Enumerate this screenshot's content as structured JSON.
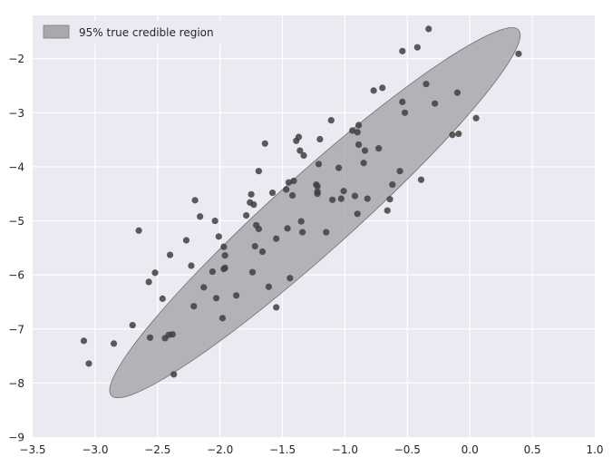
{
  "chart_data": {
    "type": "scatter",
    "title": "",
    "xlabel": "",
    "ylabel": "",
    "xlim": [
      -3.5,
      1.0
    ],
    "ylim": [
      -9,
      -1.2
    ],
    "xticks": [
      -3.5,
      -3.0,
      -2.5,
      -2.0,
      -1.5,
      -1.0,
      -0.5,
      0.0,
      0.5,
      1.0
    ],
    "xtick_labels": [
      "−3.5",
      "−3.0",
      "−2.5",
      "−2.0",
      "−1.5",
      "−1.0",
      "−0.5",
      "0.0",
      "0.5",
      "1.0"
    ],
    "yticks": [
      -9,
      -8,
      -7,
      -6,
      -5,
      -4,
      -3,
      -2
    ],
    "ytick_labels": [
      "−9",
      "−8",
      "−7",
      "−6",
      "−5",
      "−4",
      "−3",
      "−2"
    ],
    "grid": true,
    "legend": {
      "placement": "top-left",
      "entries": [
        {
          "label": "95% true credible region",
          "color": "#a9a9ad"
        }
      ]
    },
    "region": {
      "center": [
        -1.24,
        -4.85
      ],
      "semi_axes": [
        2.15,
        0.42
      ],
      "points_on_boundary": [
        [
          0.39,
          -1.47
        ],
        [
          -2.87,
          -8.23
        ],
        [
          -3.18,
          -7.25
        ],
        [
          0.07,
          -2.45
        ]
      ]
    },
    "points_color": "#404040",
    "points": [
      [
        -3.09,
        -7.22
      ],
      [
        -3.05,
        -7.64
      ],
      [
        -2.85,
        -7.27
      ],
      [
        -2.7,
        -6.93
      ],
      [
        -2.65,
        -5.18
      ],
      [
        -2.57,
        -6.13
      ],
      [
        -2.56,
        -7.16
      ],
      [
        -2.52,
        -5.96
      ],
      [
        -2.46,
        -6.44
      ],
      [
        -2.44,
        -7.17
      ],
      [
        -2.41,
        -7.11
      ],
      [
        -2.4,
        -5.63
      ],
      [
        -2.38,
        -7.1
      ],
      [
        -2.37,
        -7.84
      ],
      [
        -2.27,
        -5.36
      ],
      [
        -2.23,
        -5.83
      ],
      [
        -2.21,
        -6.58
      ],
      [
        -2.2,
        -4.62
      ],
      [
        -2.16,
        -4.92
      ],
      [
        -2.13,
        -6.23
      ],
      [
        -2.06,
        -5.94
      ],
      [
        -2.04,
        -5.0
      ],
      [
        -2.03,
        -6.43
      ],
      [
        -2.01,
        -5.29
      ],
      [
        -1.98,
        -6.8
      ],
      [
        -1.97,
        -5.48
      ],
      [
        -1.97,
        -5.89
      ],
      [
        -1.96,
        -5.64
      ],
      [
        -1.96,
        -5.87
      ],
      [
        -1.87,
        -6.38
      ],
      [
        -1.79,
        -4.9
      ],
      [
        -1.76,
        -4.66
      ],
      [
        -1.75,
        -4.51
      ],
      [
        -1.74,
        -5.95
      ],
      [
        -1.73,
        -4.7
      ],
      [
        -1.72,
        -5.47
      ],
      [
        -1.71,
        -5.08
      ],
      [
        -1.69,
        -5.15
      ],
      [
        -1.69,
        -4.08
      ],
      [
        -1.66,
        -5.57
      ],
      [
        -1.64,
        -3.57
      ],
      [
        -1.61,
        -6.22
      ],
      [
        -1.58,
        -4.48
      ],
      [
        -1.55,
        -6.6
      ],
      [
        -1.55,
        -5.33
      ],
      [
        -1.47,
        -4.42
      ],
      [
        -1.46,
        -5.14
      ],
      [
        -1.45,
        -4.29
      ],
      [
        -1.44,
        -6.06
      ],
      [
        -1.42,
        -4.53
      ],
      [
        -1.41,
        -4.26
      ],
      [
        -1.39,
        -3.52
      ],
      [
        -1.37,
        -3.45
      ],
      [
        -1.36,
        -3.7
      ],
      [
        -1.35,
        -5.01
      ],
      [
        -1.34,
        -5.21
      ],
      [
        -1.33,
        -3.79
      ],
      [
        -1.23,
        -4.33
      ],
      [
        -1.22,
        -4.36
      ],
      [
        -1.22,
        -4.46
      ],
      [
        -1.22,
        -4.5
      ],
      [
        -1.21,
        -3.95
      ],
      [
        -1.2,
        -3.49
      ],
      [
        -1.15,
        -5.21
      ],
      [
        -1.11,
        -3.14
      ],
      [
        -1.1,
        -4.61
      ],
      [
        -1.05,
        -4.02
      ],
      [
        -1.03,
        -4.59
      ],
      [
        -1.01,
        -4.45
      ],
      [
        -0.94,
        -3.33
      ],
      [
        -0.92,
        -4.54
      ],
      [
        -0.9,
        -3.36
      ],
      [
        -0.9,
        -4.87
      ],
      [
        -0.89,
        -3.23
      ],
      [
        -0.89,
        -3.59
      ],
      [
        -0.85,
        -3.93
      ],
      [
        -0.84,
        -3.7
      ],
      [
        -0.82,
        -4.59
      ],
      [
        -0.77,
        -2.59
      ],
      [
        -0.73,
        -3.66
      ],
      [
        -0.7,
        -2.54
      ],
      [
        -0.66,
        -4.81
      ],
      [
        -0.64,
        -4.6
      ],
      [
        -0.62,
        -4.33
      ],
      [
        -0.56,
        -4.08
      ],
      [
        -0.54,
        -1.86
      ],
      [
        -0.54,
        -2.8
      ],
      [
        -0.52,
        -3.0
      ],
      [
        -0.42,
        -1.79
      ],
      [
        -0.39,
        -4.24
      ],
      [
        -0.35,
        -2.47
      ],
      [
        -0.33,
        -1.45
      ],
      [
        -0.28,
        -2.83
      ],
      [
        -0.14,
        -3.41
      ],
      [
        -0.1,
        -2.63
      ],
      [
        -0.09,
        -3.39
      ],
      [
        0.05,
        -3.1
      ],
      [
        0.39,
        -1.91
      ]
    ]
  }
}
